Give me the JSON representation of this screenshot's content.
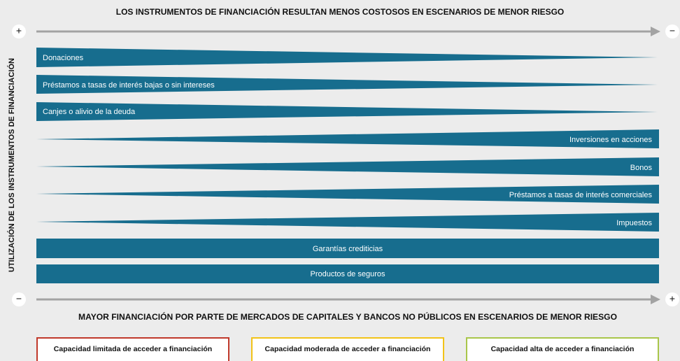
{
  "top_title": "LOS INSTRUMENTOS DE FINANCIACIÓN RESULTAN MENOS COSTOSOS EN ESCENARIOS DE MENOR RIESGO",
  "bottom_title": "MAYOR FINANCIACIÓN POR PARTE DE MERCADOS DE CAPITALES Y BANCOS NO PÚBLICOS EN ESCENARIOS DE MENOR RIESGO",
  "vertical_label": "UTILIZACIÓN DE LOS INSTRUMENTOS DE FINANCIACIÓN",
  "signs": {
    "top_left": "+",
    "top_right": "−",
    "bottom_left": "−",
    "bottom_right": "+"
  },
  "instruments": [
    "Donaciones",
    "Préstamos a tasas de interés bajas o sin intereses",
    "Canjes o alivio de la deuda",
    "Inversiones en acciones",
    "Bonos",
    "Préstamos a tasas de interés comerciales",
    "Impuestos",
    "Garantías crediticias",
    "Productos de seguros"
  ],
  "capacity": [
    "Capacidad limitada de acceder a financiación",
    "Capacidad moderada de acceder a financiación",
    "Capacidad alta de acceder a financiación"
  ]
}
